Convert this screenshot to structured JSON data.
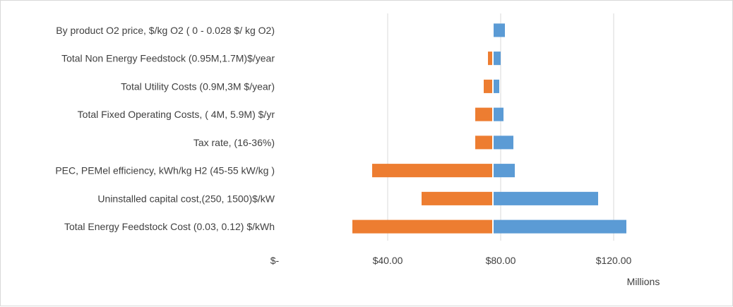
{
  "chart_data": {
    "type": "bar",
    "orientation": "horizontal",
    "variant": "tornado",
    "base_value": 77,
    "categories": [
      "By product O2 price, $/kg O2 ( 0 - 0.028 $/ kg O2)",
      "Total Non Energy Feedstock (0.95M,1.7M)$/year",
      "Total Utility Costs (0.9M,3M $/year)",
      "Total Fixed Operating Costs, ( 4M, 5.9M) $/yr",
      "Tax rate, (16-36%)",
      "PEC, PEMel efficiency, kWh/kg H2 (45-55 kW/kg )",
      "Uninstalled capital cost,(250, 1500)$/kW",
      "Total Energy Feedstock Cost (0.03, 0.12) $/kWh"
    ],
    "series": [
      {
        "values": [
          77,
          75.5,
          74,
          71,
          71,
          34.5,
          52,
          27.5
        ],
        "color": "#ED7D31"
      },
      {
        "values": [
          81.5,
          80,
          79.5,
          81,
          84.5,
          85,
          114.5,
          124.5
        ],
        "color": "#5B9BD5"
      }
    ],
    "x_ticks": [
      {
        "value": 0,
        "label": "$-"
      },
      {
        "value": 40,
        "label": "$40.00"
      },
      {
        "value": 80,
        "label": "$80.00"
      },
      {
        "value": 120,
        "label": "$120.00"
      }
    ],
    "xlim": [
      0,
      160
    ],
    "x_unit_label": "Millions",
    "grid": "vertical",
    "legend": "none"
  }
}
